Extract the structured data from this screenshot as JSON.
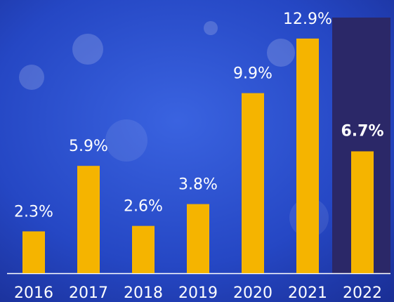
{
  "chart_data": {
    "type": "bar",
    "categories": [
      "2016",
      "2017",
      "2018",
      "2019",
      "2020",
      "2021",
      "2022"
    ],
    "values": [
      2.3,
      5.9,
      2.6,
      3.8,
      9.9,
      12.9,
      6.7
    ],
    "value_labels": [
      "2.3%",
      "5.9%",
      "2.6%",
      "3.8%",
      "9.9%",
      "12.9%",
      "6.7%"
    ],
    "color": "#f5b400"
  }
}
